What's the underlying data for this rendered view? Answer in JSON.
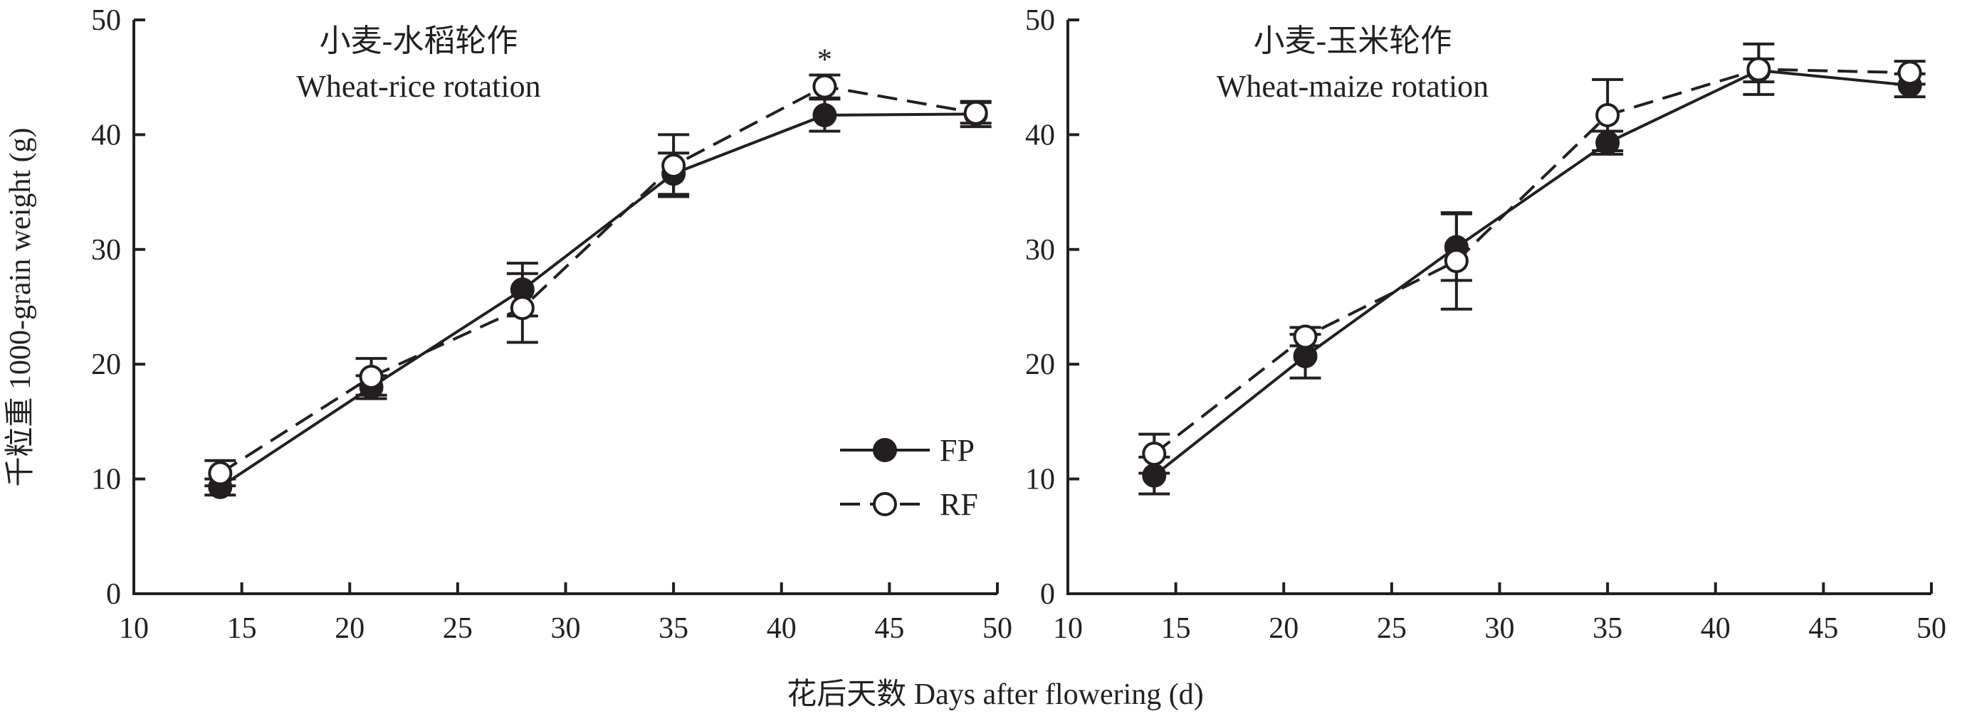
{
  "chart_data": [
    {
      "type": "line",
      "title_cn": "小麦-水稻轮作",
      "title": "Wheat-rice rotation",
      "x": [
        14,
        21,
        28,
        35,
        42,
        49
      ],
      "xlim": [
        10,
        50
      ],
      "ylim": [
        0,
        50
      ],
      "xticks": [
        10,
        15,
        20,
        25,
        30,
        35,
        40,
        45,
        50
      ],
      "yticks": [
        0,
        10,
        20,
        30,
        40,
        50
      ],
      "series": [
        {
          "name": "FP",
          "marker": "filled-circle",
          "line": "solid",
          "values": [
            9.3,
            18.0,
            26.5,
            36.6,
            41.7,
            41.8
          ],
          "error": [
            0.7,
            1.0,
            2.3,
            1.8,
            1.4,
            1.1
          ]
        },
        {
          "name": "RF",
          "marker": "open-circle",
          "line": "dashed",
          "values": [
            10.5,
            18.9,
            24.9,
            37.3,
            44.2,
            41.9
          ],
          "error": [
            1.1,
            1.6,
            3.0,
            2.7,
            1.0,
            0.9
          ]
        }
      ],
      "annotations": [
        {
          "x": 42,
          "text": "*"
        }
      ],
      "legend": "bottom-right"
    },
    {
      "type": "line",
      "title_cn": "小麦-玉米轮作",
      "title": "Wheat-maize rotation",
      "x": [
        14,
        21,
        28,
        35,
        42,
        49
      ],
      "xlim": [
        10,
        50
      ],
      "ylim": [
        0,
        50
      ],
      "xticks": [
        10,
        15,
        20,
        25,
        30,
        35,
        40,
        45,
        50
      ],
      "yticks": [
        0,
        10,
        20,
        30,
        40,
        50
      ],
      "series": [
        {
          "name": "FP",
          "marker": "filled-circle",
          "line": "solid",
          "values": [
            10.3,
            20.7,
            30.2,
            39.3,
            45.6,
            44.3
          ],
          "error": [
            1.6,
            1.9,
            2.9,
            1.0,
            1.0,
            1.0
          ]
        },
        {
          "name": "RF",
          "marker": "open-circle",
          "line": "dashed",
          "values": [
            12.2,
            22.4,
            29.0,
            41.7,
            45.7,
            45.4
          ],
          "error": [
            1.7,
            0.8,
            4.2,
            3.1,
            2.2,
            1.0
          ]
        }
      ]
    }
  ],
  "ylabel": "千粒重 1000-grain weight (g)",
  "xlabel": "花后天数 Days after flowering (d)",
  "colors": {
    "ink": "#231f20",
    "open_fill": "#ffffff"
  }
}
